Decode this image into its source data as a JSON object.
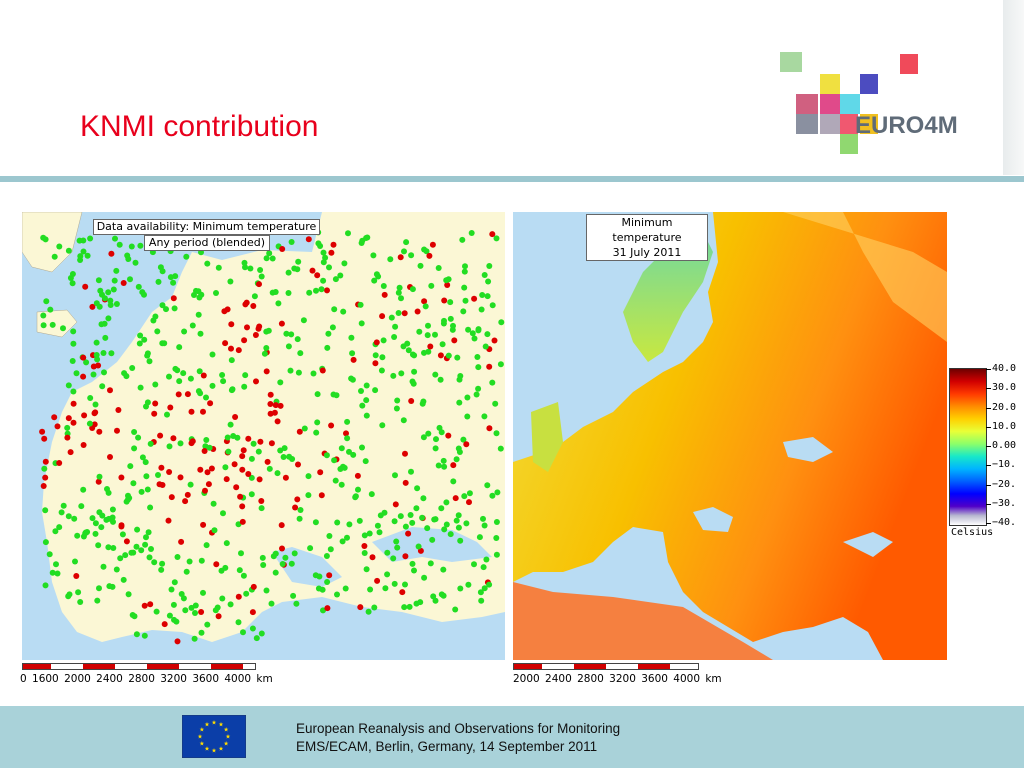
{
  "slide": {
    "title": "KNMI contribution",
    "logo_text": "EURO4M"
  },
  "left_map": {
    "legend_line1": "Data availability: Minimum temperature",
    "legend_line2": "Any period (blended)",
    "scale_labels": "0  1600  2000  2400  2800  3200  3600  4000 km"
  },
  "right_map": {
    "legend_line1": "Minimum temperature",
    "legend_line2": "31 July 2011",
    "scale_labels": "2000  2400  2800  3200  3600  4000 km",
    "colorbar": {
      "unit": "Celsius",
      "ticks": [
        "40.0",
        "30.0",
        "20.0",
        "10.0",
        "0.00",
        "−10.",
        "−20.",
        "−30.",
        "−40."
      ]
    }
  },
  "footer": {
    "line1": "European Reanalysis and Observations for Monitoring",
    "line2": "EMS/ECAM, Berlin, Germany, 14 September 2011"
  },
  "colors": {
    "title": "#e8001c",
    "band": "#9cc7cf",
    "footer_bg": "#a9d2d9",
    "station_available": "#22dd22",
    "station_missing": "#dd0000"
  }
}
